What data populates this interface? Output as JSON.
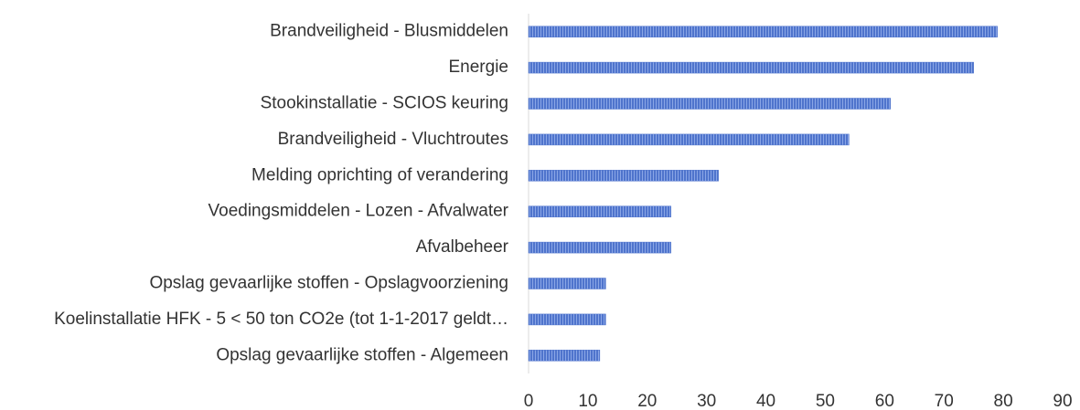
{
  "chart_data": {
    "type": "bar",
    "orientation": "horizontal",
    "categories": [
      "Brandveiligheid - Blusmiddelen",
      "Energie",
      "Stookinstallatie - SCIOS keuring",
      "Brandveiligheid - Vluchtroutes",
      "Melding oprichting of verandering",
      "Voedingsmiddelen - Lozen - Afvalwater",
      "Afvalbeheer",
      "Opslag gevaarlijke stoffen - Opslagvoorziening",
      "Koelinstallatie HFK - 5 < 50 ton CO2e (tot 1-1-2017 geldt…",
      "Opslag gevaarlijke stoffen - Algemeen"
    ],
    "values": [
      79,
      75,
      61,
      54,
      32,
      24,
      24,
      13,
      13,
      12
    ],
    "color": "#4f74cc",
    "xlim": [
      0,
      90
    ],
    "xticks": [
      0,
      10,
      20,
      30,
      40,
      50,
      60,
      70,
      80,
      90
    ],
    "grid": false
  }
}
